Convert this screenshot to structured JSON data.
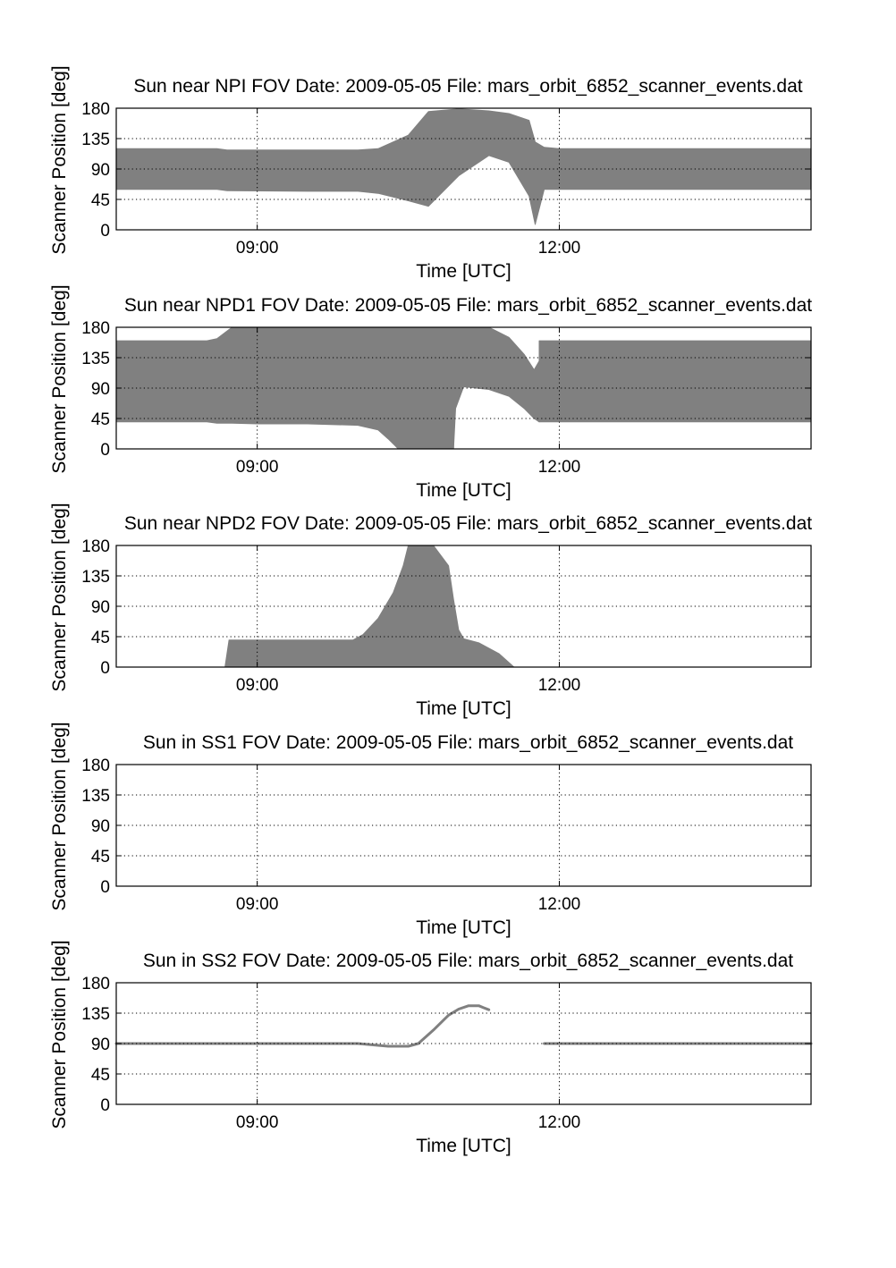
{
  "chart_data": [
    {
      "type": "area",
      "title": "Sun near NPI FOV   Date: 2009-05-05   File: mars_orbit_6852_scanner_events.dat",
      "xlabel": "Time [UTC]",
      "ylabel": "Scanner Position [deg]",
      "x_ticks": [
        {
          "value": 9.0,
          "label": "09:00"
        },
        {
          "value": 12.0,
          "label": "12:00"
        }
      ],
      "y_ticks": [
        0,
        45,
        90,
        135,
        180
      ],
      "xlim": [
        7.6,
        14.5
      ],
      "ylim": [
        0,
        180
      ],
      "grid": true,
      "color": "#808080",
      "series": [
        {
          "kind": "band",
          "x": [
            7.6,
            8.6,
            8.7,
            9.5,
            10.0,
            10.2,
            10.5,
            10.7,
            11.0,
            11.3,
            11.5,
            11.7,
            11.76,
            11.85,
            12.0,
            13.0,
            14.5
          ],
          "low": [
            60,
            60,
            58,
            57,
            57,
            54,
            43,
            35,
            80,
            110,
            100,
            50,
            8,
            60,
            60,
            60,
            60
          ],
          "high": [
            120,
            120,
            118,
            118,
            118,
            120,
            140,
            175,
            179,
            176,
            172,
            162,
            130,
            122,
            120,
            120,
            120
          ]
        }
      ]
    },
    {
      "type": "area",
      "title": "Sun near NPD1 FOV   Date: 2009-05-05   File: mars_orbit_6852_scanner_events.dat",
      "xlabel": "Time [UTC]",
      "ylabel": "Scanner Position [deg]",
      "x_ticks": [
        {
          "value": 9.0,
          "label": "09:00"
        },
        {
          "value": 12.0,
          "label": "12:00"
        }
      ],
      "y_ticks": [
        0,
        45,
        90,
        135,
        180
      ],
      "xlim": [
        7.6,
        14.5
      ],
      "ylim": [
        0,
        180
      ],
      "grid": true,
      "color": "#808080",
      "series": [
        {
          "kind": "band",
          "x": [
            7.6,
            8.5,
            8.6,
            8.75,
            9.0,
            9.5,
            10.0,
            10.2,
            10.3,
            10.38,
            10.4
          ],
          "low": [
            40,
            40,
            38,
            38,
            37,
            37,
            35,
            28,
            15,
            3,
            0
          ],
          "high": [
            160,
            160,
            163,
            180,
            180,
            180,
            180,
            180,
            180,
            180,
            180
          ]
        },
        {
          "kind": "band",
          "x": [
            10.4,
            10.7,
            10.9,
            10.95
          ],
          "low": [
            0,
            0,
            0,
            0
          ],
          "high": [
            180,
            180,
            180,
            180
          ]
        },
        {
          "kind": "band",
          "x": [
            10.95,
            10.97,
            11.05,
            11.3,
            11.5,
            11.65,
            11.75,
            11.8
          ],
          "low": [
            0,
            60,
            92,
            88,
            78,
            60,
            45,
            40
          ],
          "high": [
            180,
            180,
            180,
            180,
            165,
            140,
            117,
            130
          ]
        },
        {
          "kind": "band",
          "x": [
            11.8,
            11.85,
            12.0,
            13.0,
            14.5
          ],
          "low": [
            40,
            40,
            40,
            40,
            40
          ],
          "high": [
            160,
            160,
            160,
            160,
            160
          ]
        }
      ]
    },
    {
      "type": "area",
      "title": "Sun near NPD2 FOV   Date: 2009-05-05   File: mars_orbit_6852_scanner_events.dat",
      "xlabel": "Time [UTC]",
      "ylabel": "Scanner Position [deg]",
      "x_ticks": [
        {
          "value": 9.0,
          "label": "09:00"
        },
        {
          "value": 12.0,
          "label": "12:00"
        }
      ],
      "y_ticks": [
        0,
        45,
        90,
        135,
        180
      ],
      "xlim": [
        7.6,
        14.5
      ],
      "ylim": [
        0,
        180
      ],
      "grid": true,
      "color": "#808080",
      "series": [
        {
          "kind": "band",
          "x": [
            8.68,
            8.72,
            9.0,
            9.5,
            9.95,
            10.05,
            10.2,
            10.35,
            10.45,
            10.5,
            10.75,
            10.9,
            10.95,
            11.0,
            11.05,
            11.2,
            11.4,
            11.55
          ],
          "low": [
            0,
            0,
            0,
            0,
            0,
            0,
            0,
            0,
            0,
            0,
            0,
            0,
            0,
            0,
            0,
            0,
            0,
            0
          ],
          "high": [
            0,
            40,
            40,
            40,
            40,
            48,
            72,
            110,
            150,
            180,
            180,
            150,
            100,
            55,
            42,
            36,
            20,
            0
          ]
        }
      ]
    },
    {
      "type": "line",
      "title": "Sun in SS1 FOV   Date: 2009-05-05   File: mars_orbit_6852_scanner_events.dat",
      "xlabel": "Time [UTC]",
      "ylabel": "Scanner Position [deg]",
      "x_ticks": [
        {
          "value": 9.0,
          "label": "09:00"
        },
        {
          "value": 12.0,
          "label": "12:00"
        }
      ],
      "y_ticks": [
        0,
        45,
        90,
        135,
        180
      ],
      "xlim": [
        7.6,
        14.5
      ],
      "ylim": [
        0,
        180
      ],
      "grid": true,
      "color": "#808080",
      "series": []
    },
    {
      "type": "line",
      "title": "Sun in SS2 FOV   Date: 2009-05-05   File: mars_orbit_6852_scanner_events.dat",
      "xlabel": "Time [UTC]",
      "ylabel": "Scanner Position [deg]",
      "x_ticks": [
        {
          "value": 9.0,
          "label": "09:00"
        },
        {
          "value": 12.0,
          "label": "12:00"
        }
      ],
      "y_ticks": [
        0,
        45,
        90,
        135,
        180
      ],
      "xlim": [
        7.6,
        14.5
      ],
      "ylim": [
        0,
        180
      ],
      "grid": true,
      "color": "#808080",
      "series": [
        {
          "kind": "line",
          "x": [
            7.6,
            9.0,
            10.0,
            10.15,
            10.3,
            10.5,
            10.6,
            10.75,
            10.9,
            11.0,
            11.1,
            11.2,
            11.25,
            11.3
          ],
          "y": [
            90,
            90,
            90,
            88,
            86,
            86,
            90,
            110,
            132,
            141,
            146,
            146,
            143,
            140
          ]
        },
        {
          "kind": "line",
          "x": [
            11.85,
            12.0,
            13.0,
            14.5
          ],
          "y": [
            90,
            90,
            90,
            90
          ]
        }
      ]
    }
  ]
}
